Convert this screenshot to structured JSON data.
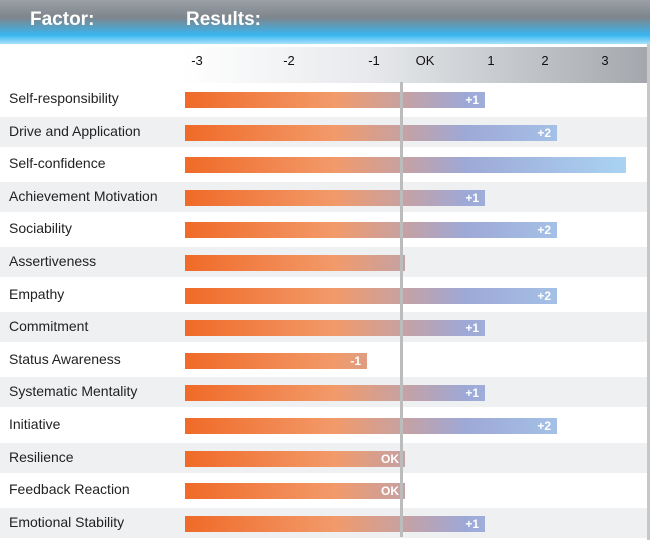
{
  "header": {
    "factor_title": "Factor:",
    "results_title": "Results:"
  },
  "chart_data": {
    "type": "bar",
    "orientation": "horizontal",
    "title": "Results",
    "category_axis_title": "Factor",
    "scale_ticks": [
      "-3",
      "-2",
      "-1",
      "OK",
      "1",
      "2",
      "3"
    ],
    "scale_values": [
      -3,
      -2,
      -1,
      0,
      1,
      2,
      3
    ],
    "xlim": [
      -3,
      3
    ],
    "baseline": -3,
    "reference_line": 0,
    "categories": [
      "Self-responsibility",
      "Drive and Application",
      "Self-confidence",
      "Achievement Motivation",
      "Sociability",
      "Assertiveness",
      "Empathy",
      "Commitment",
      "Status Awareness",
      "Systematic Mentality",
      "Initiative",
      "Resilience",
      "Feedback Reaction",
      "Emotional Stability"
    ],
    "values": [
      1,
      2,
      3,
      1,
      2,
      0,
      2,
      1,
      -1,
      1,
      2,
      0,
      0,
      1
    ],
    "bar_labels": [
      "+1",
      "+2",
      "",
      "+1",
      "+2",
      "",
      "+2",
      "+1",
      "-1",
      "+1",
      "+2",
      "OK",
      "OK",
      "+1"
    ]
  },
  "colors": {
    "bar_low": "#f06a28",
    "bar_mid": "#f29a6a",
    "bar_high": "#a9d3f2",
    "header_accent": "#38b6f0",
    "reference_line": "#bcbcbc"
  }
}
